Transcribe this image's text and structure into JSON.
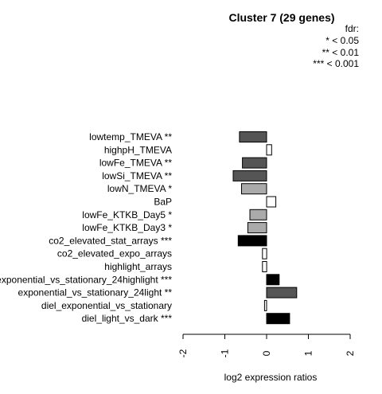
{
  "chart_data": {
    "type": "bar",
    "orientation": "horizontal",
    "title": "Cluster 7 (29 genes)",
    "xlabel": "log2 expression ratios",
    "ylabel": "",
    "xlim": [
      -2,
      2
    ],
    "xticks": [
      -2,
      -1,
      0,
      1,
      2
    ],
    "xtick_labels": [
      "-2",
      "-1",
      "0",
      "1",
      "2"
    ],
    "grid": false,
    "legend": {
      "placement": "top-right",
      "title": "fdr:",
      "entries": [
        "* < 0.05",
        "** < 0.01",
        "*** < 0.001"
      ]
    },
    "categories": [
      "lowtemp_TMEVA **",
      "highpH_TMEVA",
      "lowFe_TMEVA **",
      "lowSi_TMEVA **",
      "lowN_TMEVA *",
      "BaP",
      "lowFe_KTKB_Day5 *",
      "lowFe_KTKB_Day3 *",
      "co2_elevated_stat_arrays ***",
      "co2_elevated_expo_arrays",
      "highlight_arrays",
      "exponential_vs_stationary_24highlight ***",
      "exponential_vs_stationary_24light **",
      "diel_exponential_vs_stationary",
      "diel_light_vs_dark ***"
    ],
    "values": [
      -0.65,
      0.12,
      -0.58,
      -0.8,
      -0.6,
      0.22,
      -0.4,
      -0.45,
      -0.68,
      -0.1,
      -0.1,
      0.3,
      0.72,
      -0.05,
      0.55
    ],
    "colors": [
      "#555555",
      "#ffffff",
      "#555555",
      "#555555",
      "#aaaaaa",
      "#ffffff",
      "#aaaaaa",
      "#aaaaaa",
      "#000000",
      "#ffffff",
      "#ffffff",
      "#000000",
      "#555555",
      "#ffffff",
      "#000000"
    ]
  }
}
